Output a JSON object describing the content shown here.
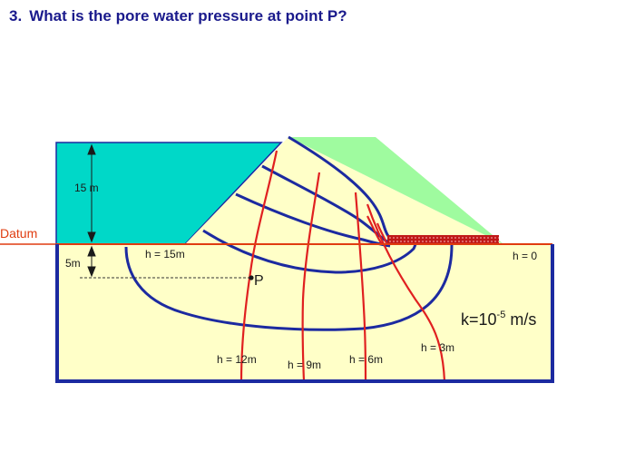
{
  "question": {
    "number": "3.",
    "text": "What is the pore water pressure at point P?"
  },
  "labels": {
    "datum": "Datum",
    "reservoir_height": "15 m",
    "depth_to_p": "5m",
    "point": "P",
    "permeability": {
      "base": "k=10",
      "exponent": "-5",
      "unit": " m/s"
    }
  },
  "head_labels": {
    "h15": "h = 15m",
    "h12": "h = 12m",
    "h9": "h = 9m",
    "h6": "h = 6m",
    "h3": "h = 3m",
    "h0": "h = 0"
  },
  "colors": {
    "reservoir": "#00d8c8",
    "dam": "#9ffb9f",
    "soil": "#ffffc8",
    "flow_lines": "#1c2aa0",
    "equipotentials": "#e02020",
    "datum_line": "#e03c10",
    "drain": "#c01818",
    "question_text": "#1a1a8c"
  }
}
